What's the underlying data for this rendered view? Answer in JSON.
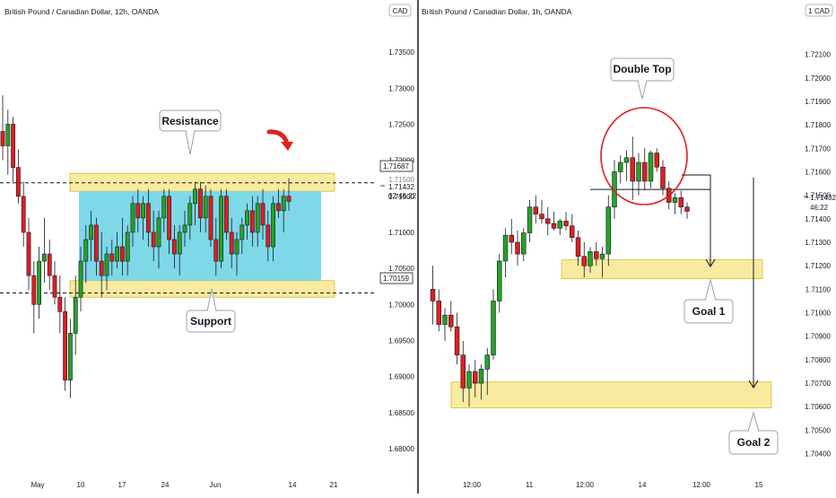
{
  "chart_data": [
    {
      "type": "candlestick",
      "title": "British Pound / Canadian Dollar, 12h, OANDA",
      "currency_badge": "CAD",
      "y_ticks": [
        "1.73500",
        "1.73000",
        "1.72500",
        "1.72000",
        "1.71500",
        "1.71000",
        "1.70500",
        "1.70000",
        "1.69500",
        "1.69000",
        "1.68500",
        "1.68000"
      ],
      "x_ticks": [
        "May",
        "10",
        "17",
        "24",
        "Jun",
        "14",
        "21"
      ],
      "price_labels": {
        "resistance_line": "1.71687",
        "current": "1.71432",
        "countdown": "02:46:22",
        "support_line": "1.70159",
        "partial_hidden": "1.71500"
      },
      "annotations": {
        "resistance": "Resistance",
        "support": "Support"
      },
      "ylim": [
        1.6775,
        1.7385
      ],
      "levels": {
        "resistance": 1.71687,
        "support": 1.70159
      },
      "zones": [
        {
          "kind": "resistance",
          "y": [
            1.7157,
            1.7182
          ],
          "color": "#f8eba0"
        },
        {
          "kind": "support",
          "y": [
            1.701,
            1.7033
          ],
          "color": "#f8eba0"
        },
        {
          "kind": "range",
          "y": [
            1.7033,
            1.7157
          ],
          "color": "#7ed8e8"
        }
      ],
      "candles": [
        {
          "o": 1.724,
          "h": 1.729,
          "l": 1.72,
          "c": 1.722
        },
        {
          "o": 1.722,
          "h": 1.727,
          "l": 1.718,
          "c": 1.725
        },
        {
          "o": 1.725,
          "h": 1.726,
          "l": 1.717,
          "c": 1.719
        },
        {
          "o": 1.719,
          "h": 1.7215,
          "l": 1.714,
          "c": 1.715
        },
        {
          "o": 1.715,
          "h": 1.717,
          "l": 1.708,
          "c": 1.71
        },
        {
          "o": 1.71,
          "h": 1.712,
          "l": 1.702,
          "c": 1.704
        },
        {
          "o": 1.704,
          "h": 1.706,
          "l": 1.696,
          "c": 1.7
        },
        {
          "o": 1.7,
          "h": 1.708,
          "l": 1.698,
          "c": 1.706
        },
        {
          "o": 1.706,
          "h": 1.712,
          "l": 1.703,
          "c": 1.707
        },
        {
          "o": 1.707,
          "h": 1.709,
          "l": 1.702,
          "c": 1.704
        },
        {
          "o": 1.704,
          "h": 1.706,
          "l": 1.7,
          "c": 1.701
        },
        {
          "o": 1.701,
          "h": 1.704,
          "l": 1.696,
          "c": 1.699
        },
        {
          "o": 1.699,
          "h": 1.701,
          "l": 1.688,
          "c": 1.6895
        },
        {
          "o": 1.6895,
          "h": 1.698,
          "l": 1.687,
          "c": 1.696
        },
        {
          "o": 1.696,
          "h": 1.704,
          "l": 1.693,
          "c": 1.701
        },
        {
          "o": 1.701,
          "h": 1.708,
          "l": 1.699,
          "c": 1.706
        },
        {
          "o": 1.706,
          "h": 1.711,
          "l": 1.703,
          "c": 1.709
        },
        {
          "o": 1.709,
          "h": 1.713,
          "l": 1.706,
          "c": 1.711
        },
        {
          "o": 1.711,
          "h": 1.712,
          "l": 1.704,
          "c": 1.706
        },
        {
          "o": 1.706,
          "h": 1.71,
          "l": 1.701,
          "c": 1.704
        },
        {
          "o": 1.704,
          "h": 1.708,
          "l": 1.702,
          "c": 1.707
        },
        {
          "o": 1.707,
          "h": 1.709,
          "l": 1.704,
          "c": 1.706
        },
        {
          "o": 1.706,
          "h": 1.71,
          "l": 1.705,
          "c": 1.708
        },
        {
          "o": 1.708,
          "h": 1.712,
          "l": 1.704,
          "c": 1.706
        },
        {
          "o": 1.706,
          "h": 1.711,
          "l": 1.704,
          "c": 1.71
        },
        {
          "o": 1.71,
          "h": 1.715,
          "l": 1.708,
          "c": 1.714
        },
        {
          "o": 1.714,
          "h": 1.716,
          "l": 1.71,
          "c": 1.712
        },
        {
          "o": 1.712,
          "h": 1.715,
          "l": 1.709,
          "c": 1.714
        },
        {
          "o": 1.714,
          "h": 1.716,
          "l": 1.708,
          "c": 1.71
        },
        {
          "o": 1.71,
          "h": 1.713,
          "l": 1.706,
          "c": 1.708
        },
        {
          "o": 1.708,
          "h": 1.713,
          "l": 1.705,
          "c": 1.712
        },
        {
          "o": 1.712,
          "h": 1.716,
          "l": 1.71,
          "c": 1.715
        },
        {
          "o": 1.715,
          "h": 1.716,
          "l": 1.707,
          "c": 1.709
        },
        {
          "o": 1.709,
          "h": 1.711,
          "l": 1.705,
          "c": 1.707
        },
        {
          "o": 1.707,
          "h": 1.711,
          "l": 1.704,
          "c": 1.71
        },
        {
          "o": 1.71,
          "h": 1.713,
          "l": 1.708,
          "c": 1.711
        },
        {
          "o": 1.711,
          "h": 1.715,
          "l": 1.709,
          "c": 1.714
        },
        {
          "o": 1.714,
          "h": 1.717,
          "l": 1.711,
          "c": 1.716
        },
        {
          "o": 1.716,
          "h": 1.717,
          "l": 1.71,
          "c": 1.712
        },
        {
          "o": 1.712,
          "h": 1.7165,
          "l": 1.71,
          "c": 1.715
        },
        {
          "o": 1.715,
          "h": 1.716,
          "l": 1.708,
          "c": 1.709
        },
        {
          "o": 1.709,
          "h": 1.712,
          "l": 1.704,
          "c": 1.706
        },
        {
          "o": 1.706,
          "h": 1.716,
          "l": 1.705,
          "c": 1.715
        },
        {
          "o": 1.715,
          "h": 1.716,
          "l": 1.709,
          "c": 1.71
        },
        {
          "o": 1.71,
          "h": 1.712,
          "l": 1.705,
          "c": 1.707
        },
        {
          "o": 1.707,
          "h": 1.71,
          "l": 1.704,
          "c": 1.709
        },
        {
          "o": 1.709,
          "h": 1.712,
          "l": 1.707,
          "c": 1.711
        },
        {
          "o": 1.711,
          "h": 1.714,
          "l": 1.709,
          "c": 1.713
        },
        {
          "o": 1.713,
          "h": 1.715,
          "l": 1.708,
          "c": 1.71
        },
        {
          "o": 1.71,
          "h": 1.715,
          "l": 1.708,
          "c": 1.714
        },
        {
          "o": 1.714,
          "h": 1.716,
          "l": 1.709,
          "c": 1.711
        },
        {
          "o": 1.711,
          "h": 1.713,
          "l": 1.706,
          "c": 1.708
        },
        {
          "o": 1.708,
          "h": 1.715,
          "l": 1.706,
          "c": 1.714
        },
        {
          "o": 1.714,
          "h": 1.716,
          "l": 1.712,
          "c": 1.713
        },
        {
          "o": 1.713,
          "h": 1.716,
          "l": 1.71,
          "c": 1.715
        },
        {
          "o": 1.715,
          "h": 1.7175,
          "l": 1.713,
          "c": 1.7143
        }
      ]
    },
    {
      "type": "candlestick",
      "title": "British Pound / Canadian Dollar, 1h, OANDA",
      "currency_badge": "CAD",
      "y_ticks": [
        "1.72100",
        "1.72000",
        "1.71900",
        "1.71800",
        "1.71700",
        "1.71600",
        "1.71500",
        "1.71400",
        "1.71300",
        "1.71200",
        "1.71100",
        "1.71000",
        "1.70900",
        "1.70800",
        "1.70700",
        "1.70600",
        "1.70500",
        "1.70400"
      ],
      "x_ticks": [
        "12:00",
        "11",
        "12:00",
        "14",
        "12:00",
        "15"
      ],
      "price_labels": {
        "current": "1.71432",
        "countdown": "46:22"
      },
      "annotations": {
        "pattern": "Double Top",
        "goal1": "Goal 1",
        "goal2": "Goal 2"
      },
      "ylim": [
        1.70345,
        1.72255
      ],
      "levels": {
        "neckline": 1.71525
      },
      "zones": [
        {
          "kind": "goal1",
          "y": [
            1.71145,
            1.71225
          ],
          "color": "#f8eba0"
        },
        {
          "kind": "goal2",
          "y": [
            1.70595,
            1.70705
          ],
          "color": "#f8eba0"
        }
      ],
      "candles": [
        {
          "o": 1.711,
          "h": 1.712,
          "l": 1.7095,
          "c": 1.7105
        },
        {
          "o": 1.7105,
          "h": 1.711,
          "l": 1.7092,
          "c": 1.7095
        },
        {
          "o": 1.7095,
          "h": 1.7102,
          "l": 1.7088,
          "c": 1.7099
        },
        {
          "o": 1.7099,
          "h": 1.7105,
          "l": 1.7092,
          "c": 1.7094
        },
        {
          "o": 1.7094,
          "h": 1.71,
          "l": 1.7078,
          "c": 1.7082
        },
        {
          "o": 1.7082,
          "h": 1.7088,
          "l": 1.7062,
          "c": 1.7068
        },
        {
          "o": 1.7068,
          "h": 1.7078,
          "l": 1.706,
          "c": 1.7075
        },
        {
          "o": 1.7075,
          "h": 1.708,
          "l": 1.7064,
          "c": 1.707
        },
        {
          "o": 1.707,
          "h": 1.7078,
          "l": 1.7063,
          "c": 1.7076
        },
        {
          "o": 1.7076,
          "h": 1.7085,
          "l": 1.7065,
          "c": 1.7082
        },
        {
          "o": 1.7082,
          "h": 1.711,
          "l": 1.708,
          "c": 1.7105
        },
        {
          "o": 1.7105,
          "h": 1.7125,
          "l": 1.71,
          "c": 1.7122
        },
        {
          "o": 1.7122,
          "h": 1.7136,
          "l": 1.7115,
          "c": 1.7133
        },
        {
          "o": 1.7133,
          "h": 1.714,
          "l": 1.7125,
          "c": 1.713
        },
        {
          "o": 1.713,
          "h": 1.7135,
          "l": 1.712,
          "c": 1.7125
        },
        {
          "o": 1.7125,
          "h": 1.7136,
          "l": 1.7122,
          "c": 1.7134
        },
        {
          "o": 1.7134,
          "h": 1.7148,
          "l": 1.713,
          "c": 1.7145
        },
        {
          "o": 1.7145,
          "h": 1.715,
          "l": 1.7138,
          "c": 1.7142
        },
        {
          "o": 1.7142,
          "h": 1.7148,
          "l": 1.7138,
          "c": 1.714
        },
        {
          "o": 1.714,
          "h": 1.7145,
          "l": 1.7133,
          "c": 1.7138
        },
        {
          "o": 1.7138,
          "h": 1.7143,
          "l": 1.7135,
          "c": 1.7136
        },
        {
          "o": 1.7136,
          "h": 1.714,
          "l": 1.7133,
          "c": 1.7139
        },
        {
          "o": 1.7139,
          "h": 1.7143,
          "l": 1.7135,
          "c": 1.7137
        },
        {
          "o": 1.7137,
          "h": 1.7142,
          "l": 1.713,
          "c": 1.7132
        },
        {
          "o": 1.7132,
          "h": 1.7135,
          "l": 1.712,
          "c": 1.7124
        },
        {
          "o": 1.7124,
          "h": 1.713,
          "l": 1.7115,
          "c": 1.712
        },
        {
          "o": 1.712,
          "h": 1.7128,
          "l": 1.7117,
          "c": 1.7126
        },
        {
          "o": 1.7126,
          "h": 1.713,
          "l": 1.712,
          "c": 1.7123
        },
        {
          "o": 1.7123,
          "h": 1.7128,
          "l": 1.7115,
          "c": 1.7125
        },
        {
          "o": 1.7125,
          "h": 1.715,
          "l": 1.712,
          "c": 1.7145
        },
        {
          "o": 1.7145,
          "h": 1.7165,
          "l": 1.714,
          "c": 1.716
        },
        {
          "o": 1.716,
          "h": 1.7167,
          "l": 1.7155,
          "c": 1.7164
        },
        {
          "o": 1.7164,
          "h": 1.7169,
          "l": 1.7156,
          "c": 1.7166
        },
        {
          "o": 1.7166,
          "h": 1.7175,
          "l": 1.7148,
          "c": 1.7156
        },
        {
          "o": 1.7156,
          "h": 1.7168,
          "l": 1.715,
          "c": 1.7164
        },
        {
          "o": 1.7164,
          "h": 1.717,
          "l": 1.7152,
          "c": 1.7156
        },
        {
          "o": 1.7156,
          "h": 1.7169,
          "l": 1.7153,
          "c": 1.7168
        },
        {
          "o": 1.7168,
          "h": 1.717,
          "l": 1.716,
          "c": 1.7162
        },
        {
          "o": 1.7162,
          "h": 1.7165,
          "l": 1.715,
          "c": 1.7153
        },
        {
          "o": 1.7153,
          "h": 1.7156,
          "l": 1.7144,
          "c": 1.7147
        },
        {
          "o": 1.7147,
          "h": 1.7151,
          "l": 1.7142,
          "c": 1.7149
        },
        {
          "o": 1.7149,
          "h": 1.7152,
          "l": 1.7142,
          "c": 1.7145
        },
        {
          "o": 1.7145,
          "h": 1.7147,
          "l": 1.714,
          "c": 1.71432
        }
      ]
    }
  ],
  "colors": {
    "bull": "#26a226",
    "bear": "#e01e1e",
    "zone_yellow": "#f8eba0",
    "zone_border": "#c8a800",
    "range_fill": "#7ed8e8",
    "highlight_circle": "#e01e1e",
    "arrow": "#e02020"
  }
}
